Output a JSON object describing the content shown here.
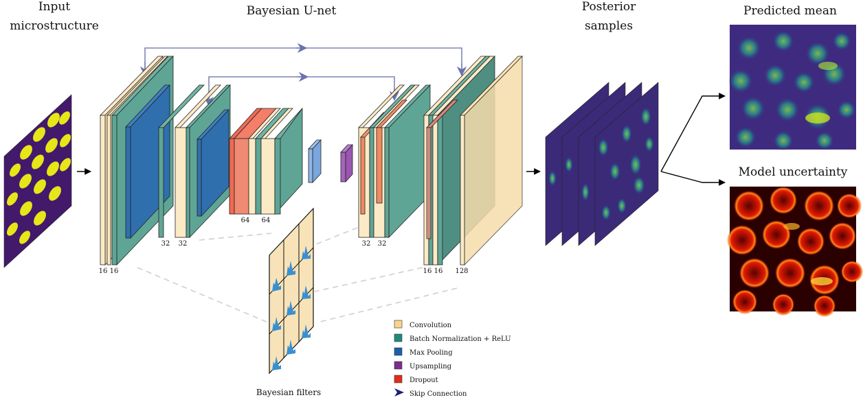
{
  "titles": {
    "input_line1": "Input",
    "input_line2": "microstructure",
    "network": "Bayesian U-net",
    "posterior_line1": "Posterior",
    "posterior_line2": "samples",
    "mean": "Predicted mean",
    "uncertainty": "Model uncertainty",
    "filters": "Bayesian filters"
  },
  "channel_labels": {
    "enc1": [
      "16",
      "16"
    ],
    "enc2": [
      "32",
      "32"
    ],
    "mid": [
      "64",
      "64"
    ],
    "dec2": [
      "32",
      "32"
    ],
    "dec1": [
      "16",
      "16"
    ],
    "out": "128"
  },
  "legend": [
    {
      "label": "Convolution",
      "color": "#f6d58c"
    },
    {
      "label": "Batch Normalization + ReLU",
      "color": "#1f8a78"
    },
    {
      "label": "Max Pooling",
      "color": "#1a5fa8"
    },
    {
      "label": "Upsampling",
      "color": "#7b2e8e"
    },
    {
      "label": "Dropout",
      "color": "#e32a1f"
    },
    {
      "label": "Skip Connection",
      "color": "#1a1f7a",
      "icon": "arrowhead-icon"
    }
  ],
  "colors": {
    "conv": "#fbeac6",
    "bn": "#5fa595",
    "pool": "#2f6fae",
    "up": "#8e44a8",
    "dropout": "#ef6a55",
    "skip": "#7e86b8",
    "viridis_bg": "#3b1f6b",
    "viridis_dot": "#e5e419"
  }
}
